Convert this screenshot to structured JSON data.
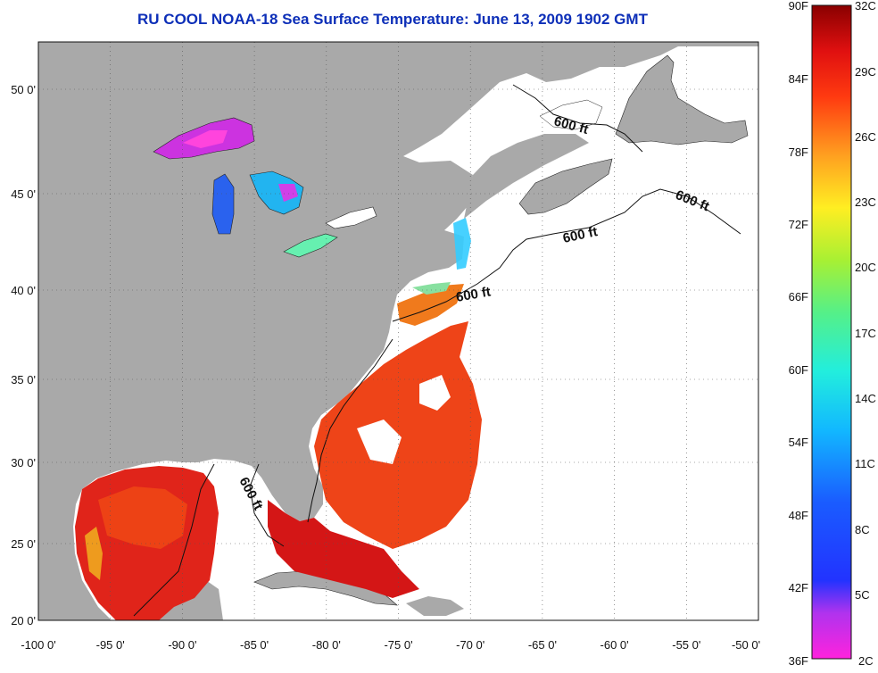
{
  "title": "RU COOL  NOAA-18  Sea Surface Temperature:  June 13, 2009 1902 GMT",
  "axes": {
    "lon_ticks": [
      "-100 0'",
      "-95 0'",
      "-90 0'",
      "-85 0'",
      "-80 0'",
      "-75 0'",
      "-70 0'",
      "-65 0'",
      "-60 0'",
      "-55 0'",
      "-50 0'"
    ],
    "lat_ticks": [
      "50 0'",
      "45 0'",
      "40 0'",
      "35 0'",
      "30 0'",
      "25 0'",
      "20 0'"
    ]
  },
  "depth_contour_label": "600 ft",
  "colorbar": {
    "fahrenheit_labels": [
      "90F",
      "84F",
      "78F",
      "72F",
      "66F",
      "60F",
      "54F",
      "48F",
      "42F",
      "36F"
    ],
    "celsius_labels": [
      "32C",
      "29C",
      "26C",
      "23C",
      "20C",
      "17C",
      "14C",
      "11C",
      "8C",
      "5C",
      "2C"
    ]
  },
  "colors": {
    "land": "#a9a9a9",
    "ocean_no_data": "#ffffff",
    "title": "#0d2fb8",
    "grid": "#555555"
  }
}
